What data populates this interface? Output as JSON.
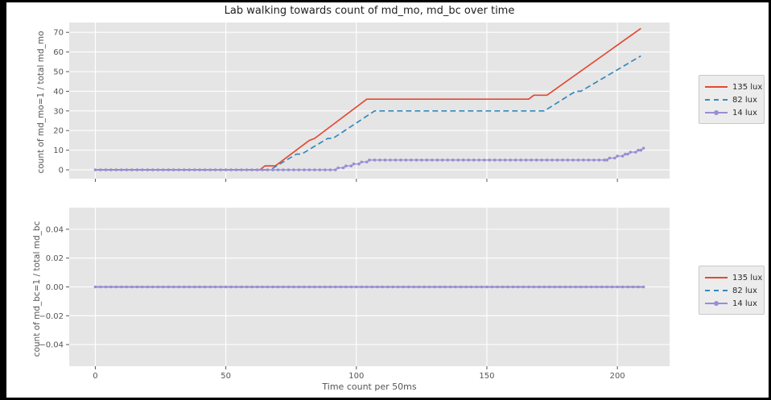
{
  "title": "Lab walking towards count of md_mo, md_bc over time",
  "xlabel": "Time count per 50ms",
  "style": {
    "figure_bg": "#ffffff",
    "axes_bg": "#e5e5e5",
    "grid_color": "#ffffff",
    "tick_color": "#555555",
    "red": "#e24a33",
    "blue": "#348abd",
    "purple": "#988ed5",
    "legend_bg": "#ececec"
  },
  "legend": {
    "position": "outside-right",
    "items": [
      {
        "label": "135 lux",
        "color": "#e24a33",
        "style": "solid"
      },
      {
        "label": "82 lux",
        "color": "#348abd",
        "style": "dashed"
      },
      {
        "label": "14 lux",
        "color": "#988ed5",
        "style": "marker"
      }
    ]
  },
  "chart_data": [
    {
      "type": "line",
      "subplot": "top",
      "title": "Lab walking towards count of md_mo, md_bc over time",
      "xlabel": "Time count per 50ms",
      "ylabel": "count of md_mo=1 / total md_mo",
      "xlim": [
        -10,
        220
      ],
      "ylim": [
        -4.5,
        75
      ],
      "grid": true,
      "xticks": [
        0,
        50,
        100,
        150,
        200
      ],
      "xtick_labels": [
        "0",
        "50",
        "100",
        "150",
        "200"
      ],
      "show_xtick_labels": false,
      "yticks": [
        0,
        10,
        20,
        30,
        40,
        50,
        60,
        70
      ],
      "ytick_labels": [
        "0",
        "10",
        "20",
        "30",
        "40",
        "50",
        "60",
        "70"
      ],
      "series": [
        {
          "name": "135 lux",
          "color": "#e24a33",
          "style": "solid",
          "points": [
            [
              0,
              0
            ],
            [
              63,
              0
            ],
            [
              65,
              2
            ],
            [
              69,
              2
            ],
            [
              82,
              15
            ],
            [
              84,
              16
            ],
            [
              104,
              36
            ],
            [
              166,
              36
            ],
            [
              168,
              38
            ],
            [
              173,
              38
            ],
            [
              209,
              72
            ]
          ]
        },
        {
          "name": "82 lux",
          "color": "#348abd",
          "style": "dashed",
          "points": [
            [
              0,
              0
            ],
            [
              67,
              0
            ],
            [
              77,
              8
            ],
            [
              79,
              8
            ],
            [
              89,
              16
            ],
            [
              91,
              16
            ],
            [
              107,
              30
            ],
            [
              172,
              30
            ],
            [
              184,
              40
            ],
            [
              186,
              40
            ],
            [
              209,
              58
            ]
          ]
        },
        {
          "name": "14 lux",
          "color": "#988ed5",
          "style": "marker",
          "points": [
            [
              0,
              0
            ],
            [
              92,
              0
            ],
            [
              93,
              1
            ],
            [
              95,
              1
            ],
            [
              96,
              2
            ],
            [
              98,
              2
            ],
            [
              99,
              3
            ],
            [
              101,
              3
            ],
            [
              102,
              4
            ],
            [
              104,
              4
            ],
            [
              105,
              5
            ],
            [
              196,
              5
            ],
            [
              197,
              6
            ],
            [
              199,
              6
            ],
            [
              200,
              7
            ],
            [
              202,
              7
            ],
            [
              203,
              8
            ],
            [
              204,
              8
            ],
            [
              205,
              9
            ],
            [
              207,
              9
            ],
            [
              208,
              10
            ],
            [
              209,
              10
            ],
            [
              210,
              11
            ]
          ]
        }
      ]
    },
    {
      "type": "line",
      "subplot": "bottom",
      "xlabel": "Time count per 50ms",
      "ylabel": "count of md_bc=1 / total md_bc",
      "xlim": [
        -10,
        220
      ],
      "ylim": [
        -0.055,
        0.055
      ],
      "grid": true,
      "xticks": [
        0,
        50,
        100,
        150,
        200
      ],
      "xtick_labels": [
        "0",
        "50",
        "100",
        "150",
        "200"
      ],
      "show_xtick_labels": true,
      "yticks": [
        -0.04,
        -0.02,
        0,
        0.02,
        0.04
      ],
      "ytick_labels": [
        "−0.04",
        "−0.02",
        "0.00",
        "0.02",
        "0.04"
      ],
      "series": [
        {
          "name": "135 lux",
          "color": "#e24a33",
          "style": "solid",
          "points": [
            [
              0,
              0
            ],
            [
              210,
              0
            ]
          ]
        },
        {
          "name": "82 lux",
          "color": "#348abd",
          "style": "dashed",
          "points": [
            [
              0,
              0
            ],
            [
              210,
              0
            ]
          ]
        },
        {
          "name": "14 lux",
          "color": "#988ed5",
          "style": "marker",
          "points": [
            [
              0,
              0
            ],
            [
              210,
              0
            ]
          ]
        }
      ]
    }
  ]
}
